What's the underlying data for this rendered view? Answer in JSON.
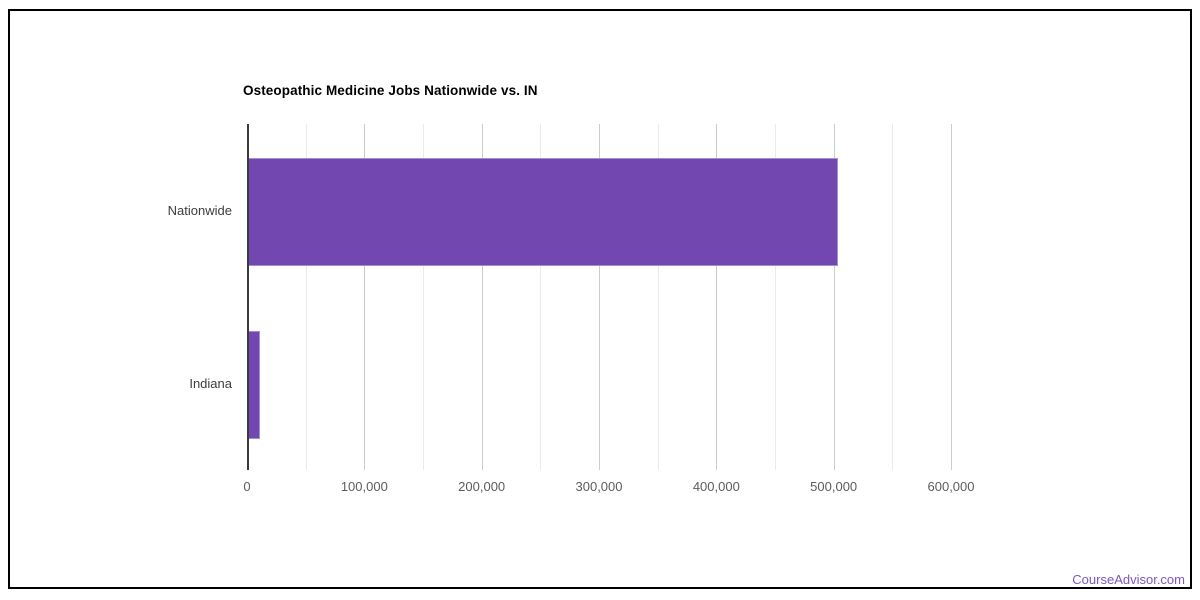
{
  "page": {
    "background": "#ffffff",
    "frame_border_color": "#000000"
  },
  "chart_data": {
    "type": "bar",
    "orientation": "horizontal",
    "title": "Osteopathic Medicine Jobs Nationwide vs. IN",
    "categories": [
      "Nationwide",
      "Indiana"
    ],
    "values": [
      503500,
      11000
    ],
    "xlabel": "",
    "ylabel": "",
    "legend_position": "none",
    "grid_on": true,
    "axis": {
      "min": 0,
      "max": 600000,
      "major_tick_step": 100000,
      "minor_tick_step": 50000,
      "tick_labels": [
        "0",
        "100,000",
        "200,000",
        "300,000",
        "400,000",
        "500,000",
        "600,000"
      ]
    },
    "colors": {
      "bar_fill": "#7347b0",
      "bar_border": "#a48fd3",
      "major_gridline": "#cccccc",
      "minor_gridline": "#ebebeb",
      "axis_line": "#3b3b3b",
      "title_text": "#000000",
      "category_text": "#3d3d3d",
      "tick_text": "#5c5c5c"
    }
  },
  "footer": {
    "link_label": "CourseAdvisor.com",
    "link_color": "#7a58c8"
  }
}
